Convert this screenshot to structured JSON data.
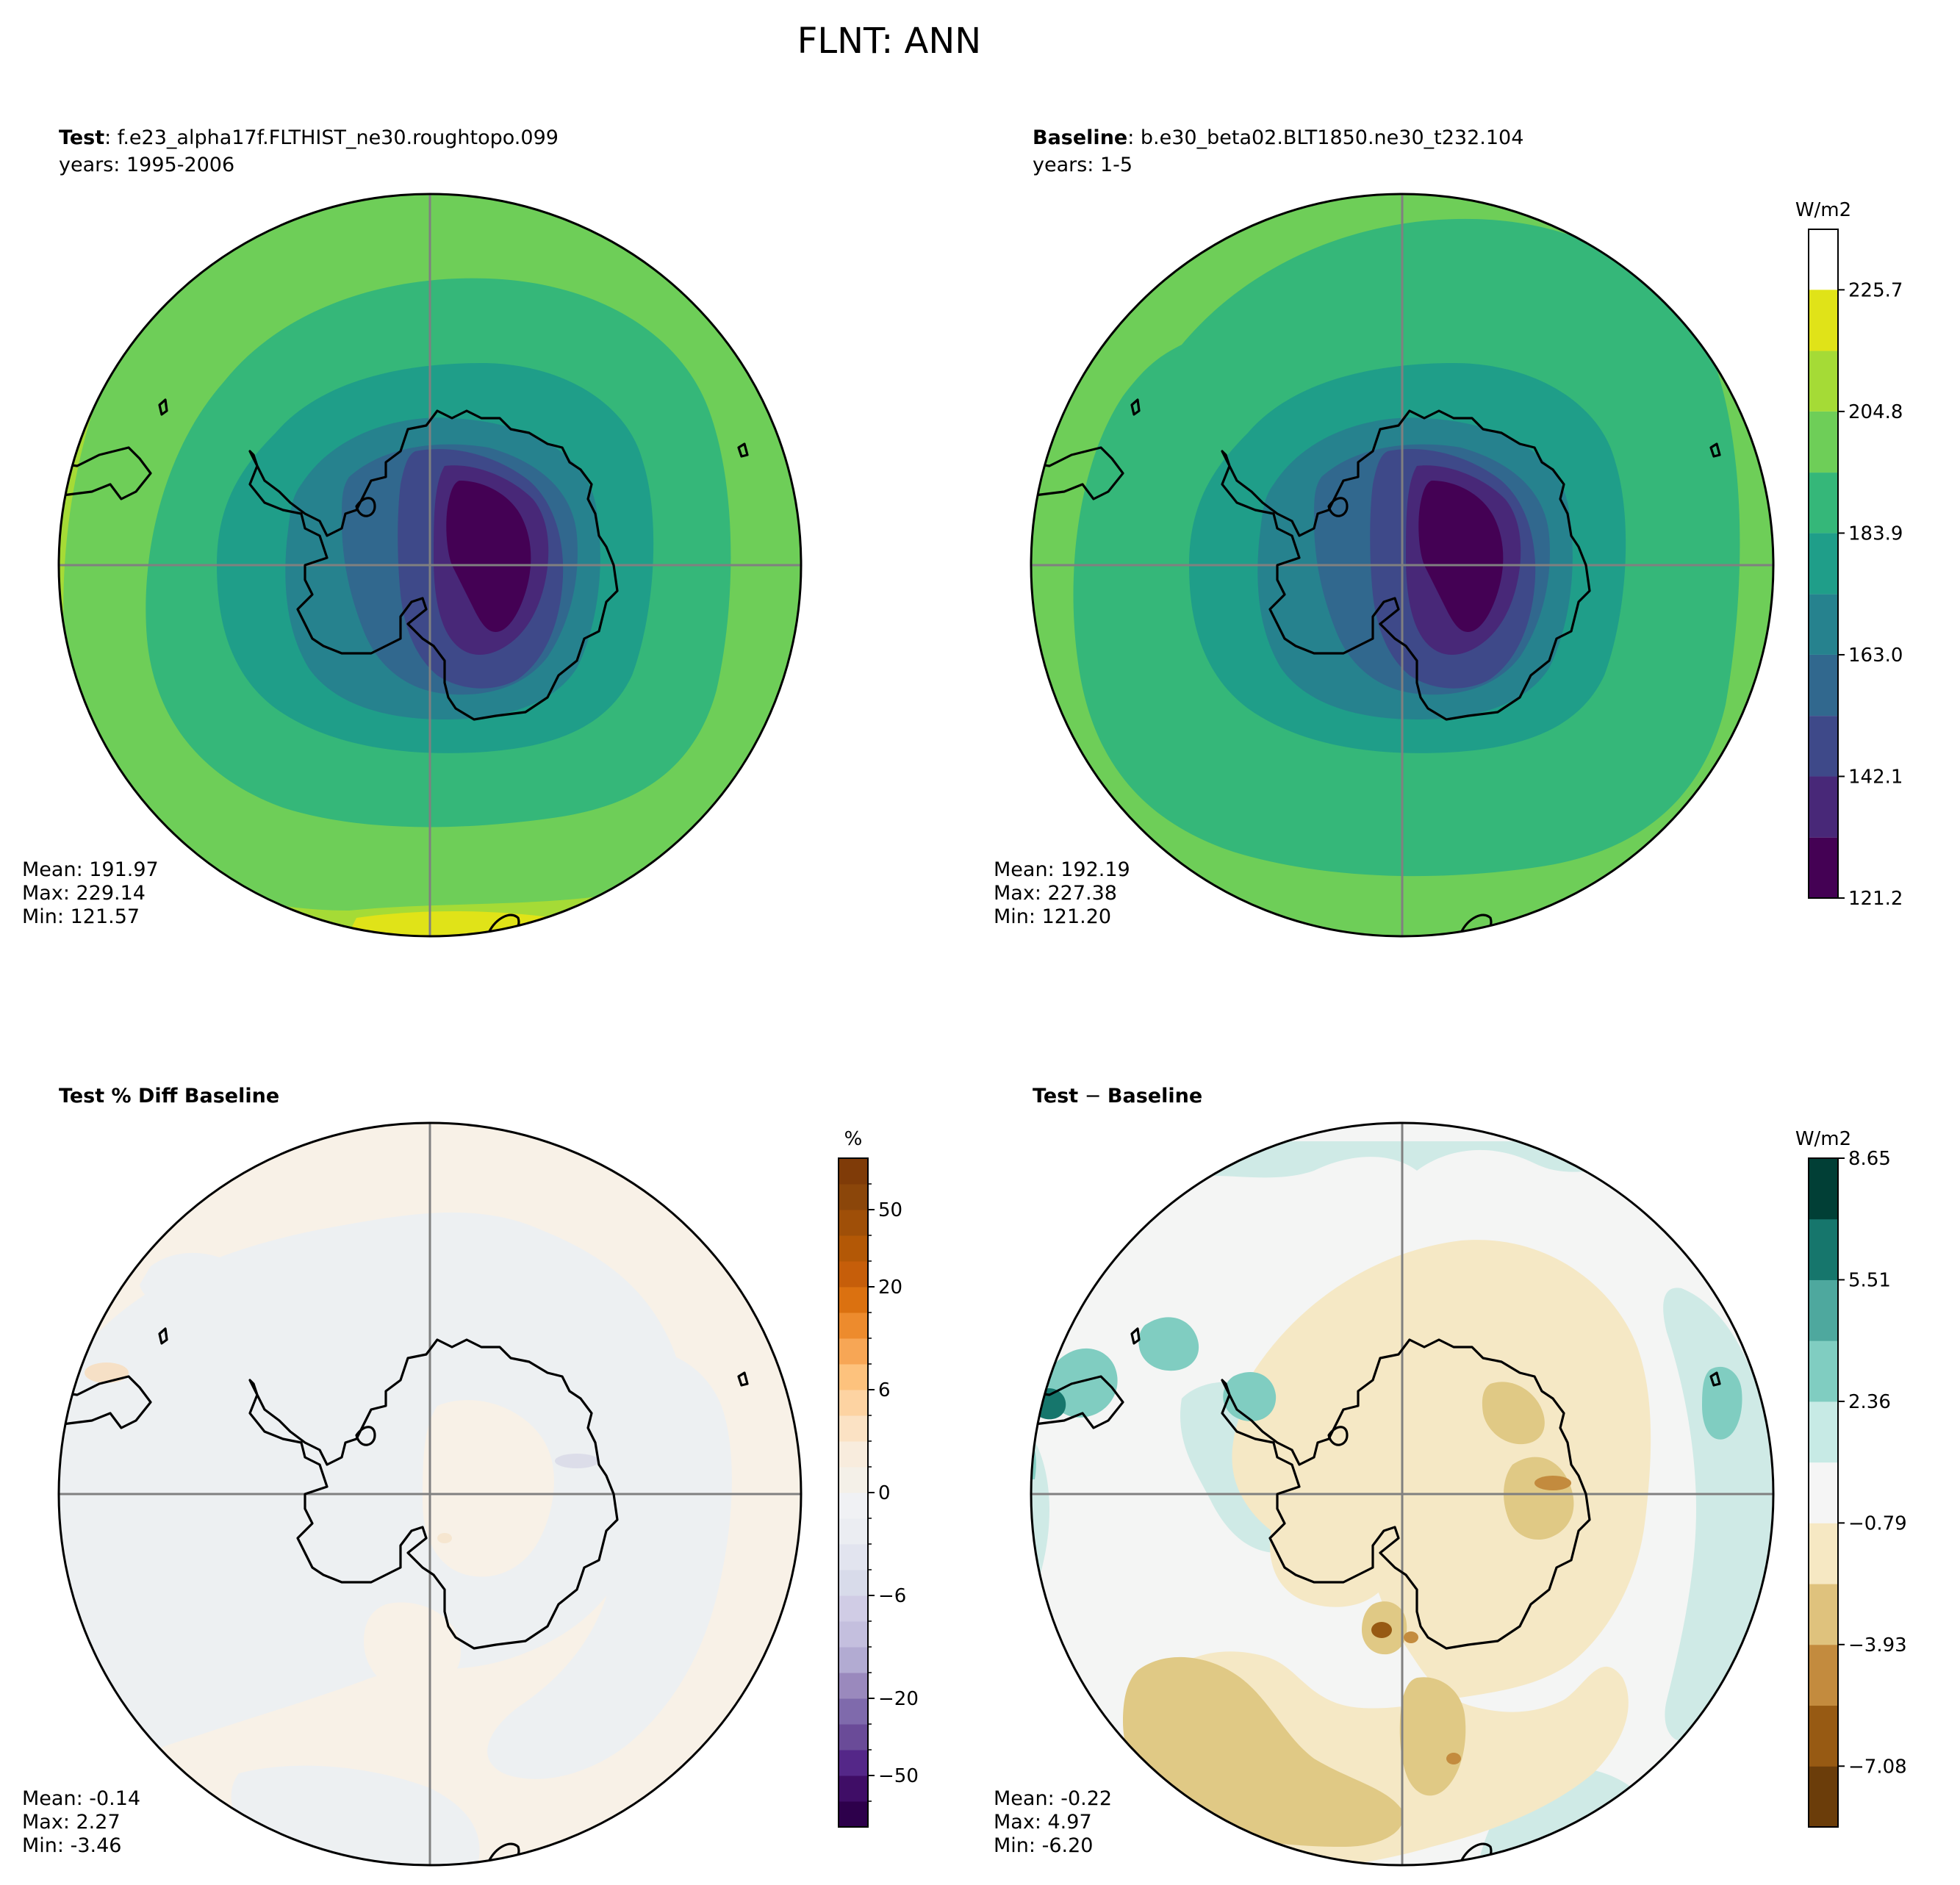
{
  "figure_title": "FLNT: ANN",
  "chart_data": [
    {
      "type": "heatmap",
      "projection": "south-polar-stereographic",
      "label_bold": "Test",
      "label_rest": ": f.e23_alpha17f.FLTHIST_ne30.roughtopo.099",
      "years": "years: 1995-2006",
      "stats": [
        "Mean: 191.97",
        "Max: 229.14",
        "Min: 121.57"
      ],
      "mean": 191.97,
      "max": 229.14,
      "min": 121.57,
      "colormap": "viridis",
      "levels": [
        121.2,
        131.6,
        142.1,
        152.5,
        163.0,
        173.4,
        183.9,
        194.3,
        204.8,
        215.2,
        225.7,
        236.1
      ],
      "band_colors": [
        "#440154",
        "#482878",
        "#3e4989",
        "#31688e",
        "#26828e",
        "#1f9e89",
        "#35b779",
        "#6ece58",
        "#a5db36",
        "#e0e318"
      ]
    },
    {
      "type": "heatmap",
      "projection": "south-polar-stereographic",
      "label_bold": "Baseline",
      "label_rest": ": b.e30_beta02.BLT1850.ne30_t232.104",
      "years": "years: 1-5",
      "stats": [
        "Mean: 192.19",
        "Max: 227.38",
        "Min: 121.20"
      ],
      "mean": 192.19,
      "max": 227.38,
      "min": 121.2,
      "colorbar": {
        "unit": "W/m2",
        "tick_labels": [
          "121.2",
          "142.1",
          "163.0",
          "183.9",
          "204.8",
          "225.7"
        ],
        "tick_values": [
          121.2,
          142.1,
          163.0,
          183.9,
          204.8,
          225.7
        ],
        "range": [
          121.2,
          236.1
        ],
        "band_colors": [
          "#440154",
          "#482878",
          "#3e4989",
          "#31688e",
          "#26828e",
          "#1f9e89",
          "#35b779",
          "#6ece58",
          "#a5db36",
          "#e0e318"
        ]
      }
    },
    {
      "type": "heatmap",
      "projection": "south-polar-stereographic",
      "label_bold": "Test % Diff Baseline",
      "stats": [
        "Mean: -0.14",
        "Max:  2.27",
        "Min: -3.46"
      ],
      "mean": -0.14,
      "max": 2.27,
      "min": -3.46,
      "colorbar": {
        "unit": "%",
        "levels": [
          -100,
          -75,
          -50,
          -40,
          -30,
          -20,
          -15,
          -10,
          -8,
          -6,
          -4,
          -2,
          -1,
          0,
          1,
          2,
          4,
          6,
          8,
          10,
          15,
          20,
          30,
          40,
          50,
          75,
          100
        ],
        "tick_labels": [
          "−50",
          "−20",
          "−6",
          "0",
          "6",
          "20",
          "50"
        ],
        "tick_values": [
          -50,
          -20,
          -6,
          0,
          6,
          20,
          50
        ],
        "band_colors": [
          "#2d004b",
          "#3f0d66",
          "#542788",
          "#6a4b98",
          "#7f6aac",
          "#9a89bd",
          "#b2abd2",
          "#c4bfde",
          "#d0cce5",
          "#d8dbea",
          "#e2e4ef",
          "#ebedf2",
          "#f0f1f4",
          "#f4f0e8",
          "#f8ecdd",
          "#fbe2c4",
          "#fdd3a2",
          "#fdc27d",
          "#f7a655",
          "#ed8b2d",
          "#db7110",
          "#c65e0a",
          "#b35806",
          "#9f4f08",
          "#8b460a",
          "#7f3b08"
        ]
      }
    },
    {
      "type": "heatmap",
      "projection": "south-polar-stereographic",
      "label_bold": "Test",
      "label_op": " − ",
      "label_bold2": "Baseline",
      "stats": [
        "Mean: -0.22",
        "Max:  4.97",
        "Min: -6.20"
      ],
      "mean": -0.22,
      "max": 4.97,
      "min": -6.2,
      "colorbar": {
        "unit": "W/m2",
        "levels": [
          -8.65,
          -7.08,
          -5.51,
          -3.93,
          -2.36,
          -0.79,
          0.79,
          2.36,
          3.93,
          5.51,
          7.08,
          8.65
        ],
        "tick_labels": [
          "−7.08",
          "−3.93",
          "−0.79",
          "2.36",
          "5.51",
          "8.65"
        ],
        "tick_values": [
          -7.08,
          -3.93,
          -0.79,
          2.36,
          5.51,
          8.65
        ],
        "band_colors": [
          "#6b3d0a",
          "#975a13",
          "#c38b3e",
          "#dfc27d",
          "#f6e8c3",
          "#f5f5f5",
          "#c7eae5",
          "#80cdc1",
          "#4ea89e",
          "#16766c",
          "#013f36"
        ]
      }
    }
  ]
}
